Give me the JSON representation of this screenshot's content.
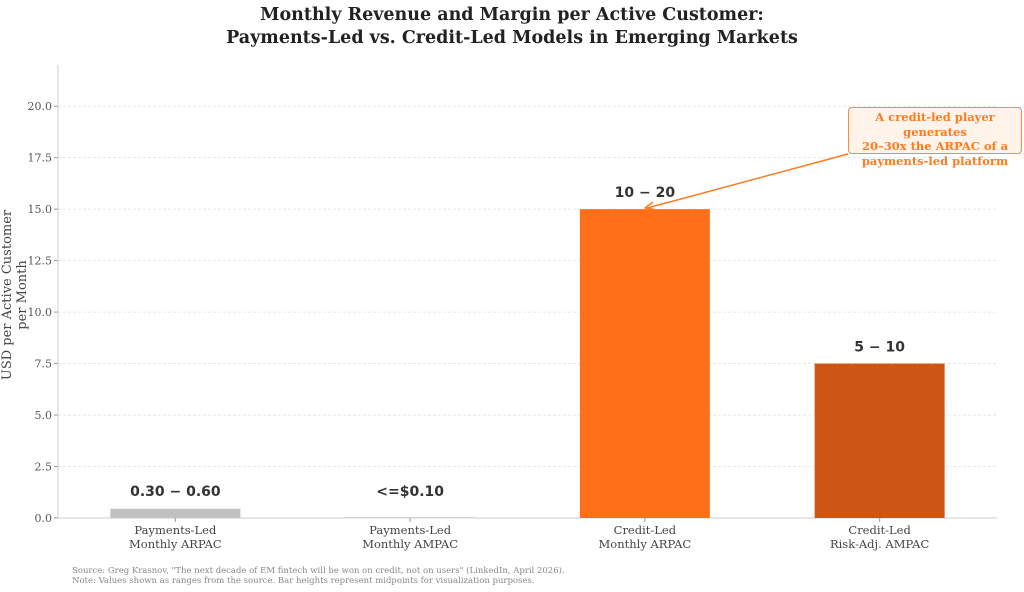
{
  "chart_data": {
    "type": "bar",
    "title_line1": "Monthly Revenue and Margin per Active Customer:",
    "title_line2": "Payments-Led vs. Credit-Led Models in Emerging Markets",
    "ylabel": "USD per Active Customer per Month",
    "ylim": [
      0,
      22
    ],
    "yticks": [
      "0.0",
      "2.5",
      "5.0",
      "7.5",
      "10.0",
      "12.5",
      "15.0",
      "17.5",
      "20.0"
    ],
    "grid": true,
    "categories": [
      {
        "line1": "Payments-Led",
        "line2": "Monthly ARPAC"
      },
      {
        "line1": "Payments-Led",
        "line2": "Monthly AMPAC"
      },
      {
        "line1": "Credit-Led",
        "line2": "Monthly ARPAC"
      },
      {
        "line1": "Credit-Led",
        "line2": "Risk-Adj. AMPAC"
      }
    ],
    "values": [
      0.45,
      0.05,
      15,
      7.5
    ],
    "data_labels": [
      "0.30 − 0.60",
      "<=$0.10",
      "10 − 20",
      "5 − 10"
    ],
    "colors": [
      "#C0C0C0",
      "#D6D6D6",
      "#FF6F1A",
      "#CC5714"
    ],
    "annotation": {
      "line1": "A credit-led player generates",
      "line2": "20–30x the ARPAC of a",
      "line3": "payments-led platform",
      "target_value": 15,
      "color": "#FF7A1F"
    },
    "source": "Source: Greg Krasnov, \"The next decade of EM fintech will be won on credit, not on users\" (LinkedIn, April 2026).",
    "note": "Note: Values shown as ranges from the source. Bar heights represent midpoints for visualization purposes."
  }
}
